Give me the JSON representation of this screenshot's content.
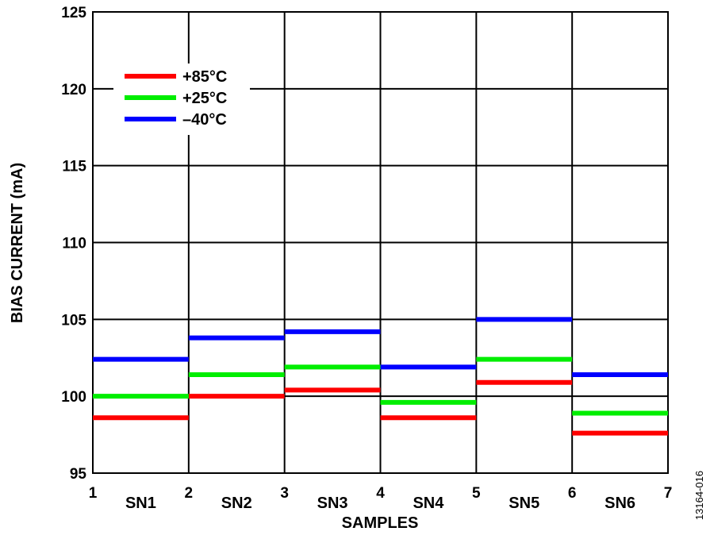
{
  "chart_data": {
    "type": "line",
    "xlabel": "SAMPLES",
    "ylabel": "BIAS CURRENT (mA)",
    "xlim": [
      1,
      7
    ],
    "ylim": [
      95,
      125
    ],
    "x_ticks": [
      "1",
      "2",
      "3",
      "4",
      "5",
      "6",
      "7"
    ],
    "y_ticks": [
      "95",
      "100",
      "105",
      "110",
      "115",
      "120",
      "125"
    ],
    "grid": true,
    "legend_placement": "top-left",
    "categories": [
      "SN1",
      "SN2",
      "SN3",
      "SN4",
      "SN5",
      "SN6"
    ],
    "series": [
      {
        "name": "+85°C",
        "color": "#ff0000",
        "values": [
          98.6,
          100.0,
          100.4,
          98.6,
          100.9,
          97.6
        ]
      },
      {
        "name": "+25°C",
        "color": "#00ee00",
        "values": [
          100.0,
          101.4,
          101.9,
          99.6,
          102.4,
          98.9
        ]
      },
      {
        "name": "–40°C",
        "color": "#0000ff",
        "values": [
          102.4,
          103.8,
          104.2,
          101.9,
          105.0,
          101.4
        ]
      }
    ]
  },
  "figure_id": "13164-016"
}
